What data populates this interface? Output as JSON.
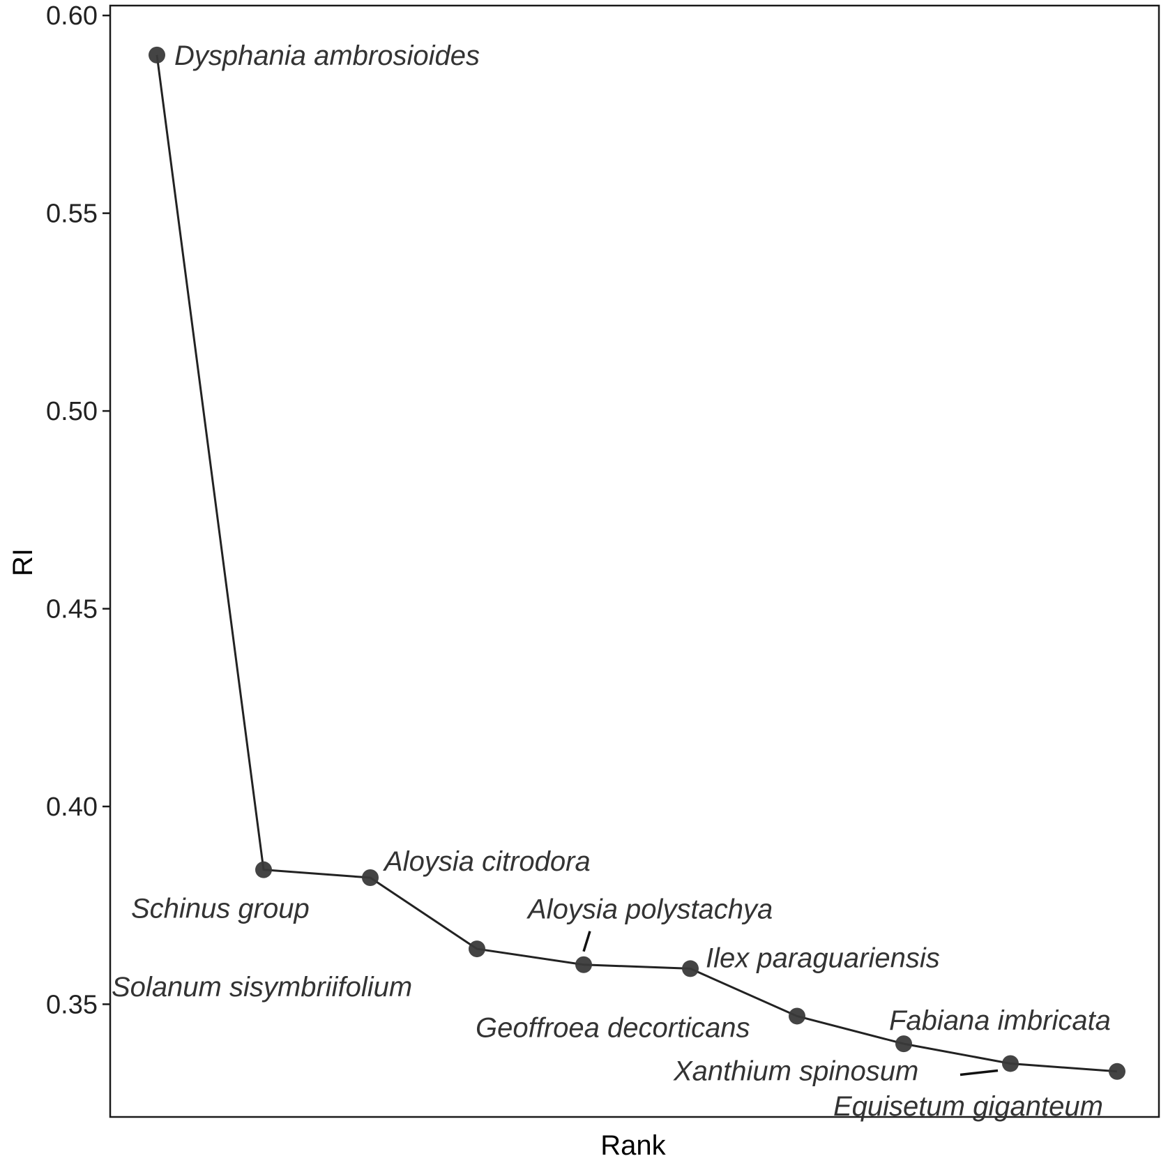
{
  "chart_data": {
    "type": "line",
    "xlabel": "Rank",
    "ylabel": "RI",
    "ylim": [
      0.3215,
      0.6025
    ],
    "yticks": [
      0.35,
      0.4,
      0.45,
      0.5,
      0.55,
      0.6
    ],
    "ytick_labels": [
      "0.35",
      "0.40",
      "0.45",
      "0.50",
      "0.55",
      "0.60"
    ],
    "x_tick_labels_shown": false,
    "grid": false,
    "legend": "none",
    "line_color": "#222222",
    "point_color": "#3a3a3a",
    "points": [
      {
        "rank": 1,
        "ri": 0.59,
        "label": "Dysphania ambrosioides"
      },
      {
        "rank": 2,
        "ri": 0.384,
        "label": "Schinus group"
      },
      {
        "rank": 3,
        "ri": 0.382,
        "label": "Aloysia citrodora"
      },
      {
        "rank": 4,
        "ri": 0.364,
        "label": "Solanum sisymbriifolium"
      },
      {
        "rank": 5,
        "ri": 0.36,
        "label": "Aloysia polystachya"
      },
      {
        "rank": 6,
        "ri": 0.359,
        "label": "Ilex paraguariensis"
      },
      {
        "rank": 7,
        "ri": 0.347,
        "label": "Geoffroea decorticans"
      },
      {
        "rank": 8,
        "ri": 0.34,
        "label": "Fabiana imbricata"
      },
      {
        "rank": 9,
        "ri": 0.335,
        "label": "Xanthium spinosum"
      },
      {
        "rank": 10,
        "ri": 0.333,
        "label": "Equisetum giganteum"
      }
    ]
  }
}
